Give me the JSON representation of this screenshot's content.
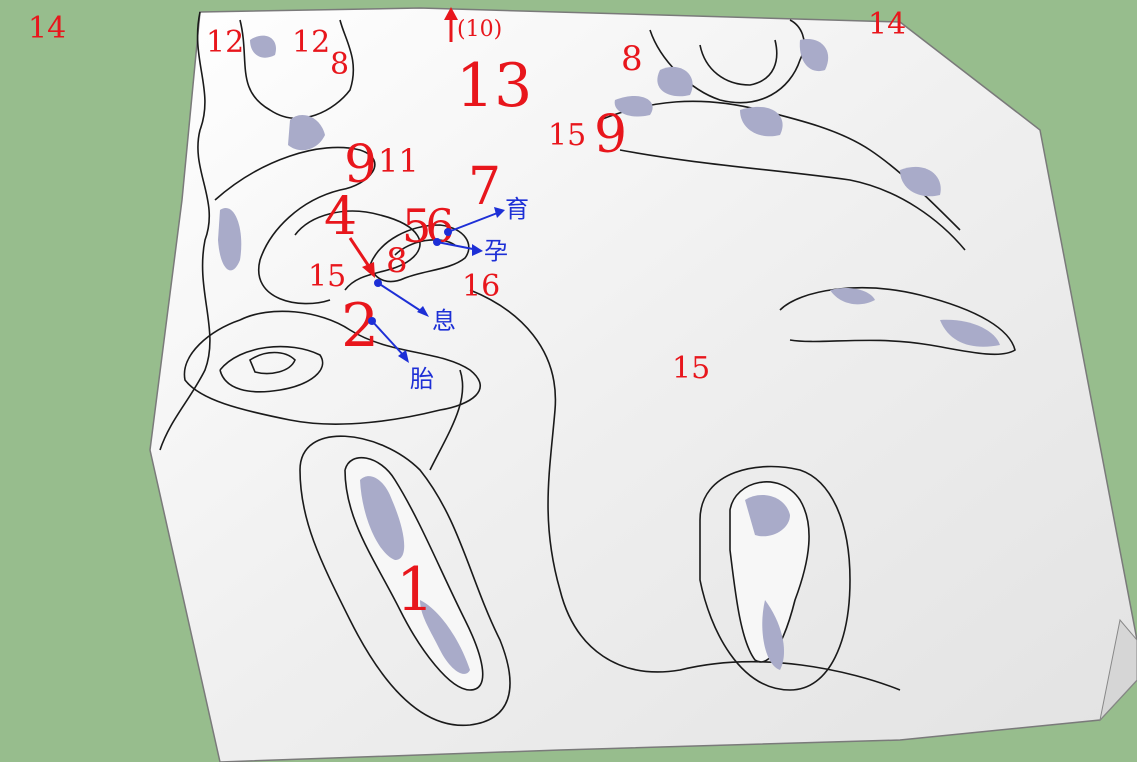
{
  "colors": {
    "ground": "#97bd8d",
    "terrain": "#f3f3f3",
    "rock": "#a9abc9",
    "label_red": "#e8161c",
    "label_blue": "#1d2fd6"
  },
  "labels": {
    "n14_left": "14",
    "n14_right": "14",
    "n12_a": "12",
    "n12_b": "12",
    "n8_top": "8",
    "n10": "(10)",
    "n13": "13",
    "n8_right": "8",
    "n15_right": "15",
    "n9_right": "9",
    "n9_left": "9",
    "n11": "11",
    "n7": "7",
    "n4": "4",
    "n56": "56",
    "n8_mid": "8",
    "n15_left": "15",
    "n16": "16",
    "n2": "2",
    "n15_center": "15",
    "n1": "1"
  },
  "annotations": {
    "yu": "育",
    "yun": "孕",
    "xi": "息",
    "tai": "胎"
  }
}
